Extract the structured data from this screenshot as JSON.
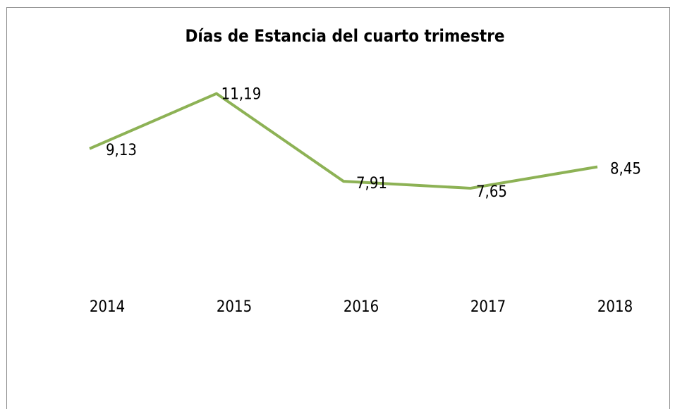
{
  "chart_data": {
    "type": "line",
    "title": "Días de Estancia del cuarto trimestre",
    "categories": [
      "2014",
      "2015",
      "2016",
      "2017",
      "2018"
    ],
    "series": [
      {
        "color": "#8db255",
        "values": [
          9.13,
          11.19,
          7.91,
          7.65,
          8.45
        ],
        "value_labels": [
          "9,13",
          "11,19",
          "7,91",
          "7,65",
          "8,45"
        ]
      }
    ],
    "ylim": [
      0,
      12
    ]
  }
}
